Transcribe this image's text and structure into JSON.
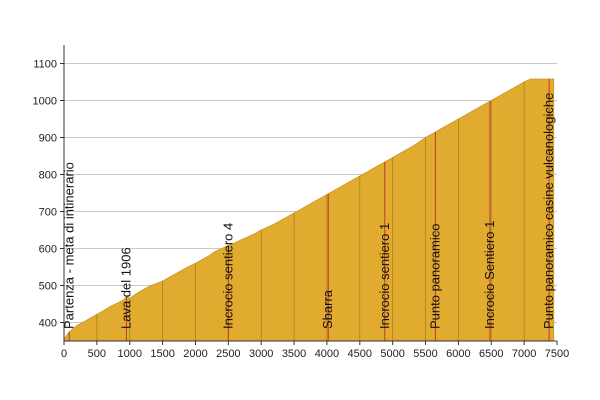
{
  "chart_data": {
    "type": "area",
    "title": "",
    "xlabel": "",
    "ylabel": "",
    "xlim": [
      0,
      7500
    ],
    "ylim": [
      350,
      1150
    ],
    "x_ticks": [
      0,
      500,
      1000,
      1500,
      2000,
      2500,
      3000,
      3500,
      4000,
      4500,
      5000,
      5500,
      6000,
      6500,
      7000,
      7500
    ],
    "x_tick_labels": [
      "0",
      "500",
      "1000",
      "1500",
      "2000",
      "2500",
      "3000",
      "3500",
      "4000",
      "4500",
      "5000",
      "5500",
      "6000",
      "6500",
      "7000",
      "7500"
    ],
    "y_ticks": [
      400,
      500,
      600,
      700,
      800,
      900,
      1000,
      1100
    ],
    "y_tick_labels": [
      "400",
      "500",
      "600",
      "700",
      "800",
      "900",
      "1000",
      "1100"
    ],
    "grid": "horizontal",
    "fill_color": "#e0ab2e",
    "marker_color": "#c0392b",
    "grid_color": "#c8c8c8",
    "series": [
      {
        "x": [
          0,
          80,
          200,
          300,
          400,
          500,
          600,
          700,
          800,
          900,
          950,
          1000,
          1100,
          1200,
          1300,
          1400,
          1500,
          1600,
          1700,
          1800,
          1900,
          2000,
          2100,
          2200,
          2300,
          2400,
          2500,
          2600,
          2700,
          2800,
          2900,
          3000,
          3100,
          3200,
          3300,
          3400,
          3500,
          3600,
          3700,
          3800,
          3900,
          4000,
          4100,
          4200,
          4300,
          4400,
          4500,
          4600,
          4700,
          4800,
          4900,
          5000,
          5100,
          5200,
          5300,
          5400,
          5500,
          5600,
          5700,
          5800,
          5900,
          6000,
          6100,
          6200,
          6300,
          6400,
          6500,
          6600,
          6700,
          6800,
          6900,
          7000,
          7100,
          7200,
          7300,
          7450
        ],
        "y": [
          355,
          375,
          392,
          402,
          412,
          422,
          432,
          443,
          452,
          460,
          470,
          465,
          478,
          488,
          498,
          505,
          512,
          522,
          532,
          542,
          552,
          560,
          570,
          580,
          592,
          600,
          608,
          615,
          624,
          632,
          640,
          650,
          658,
          666,
          676,
          686,
          696,
          706,
          716,
          726,
          736,
          746,
          756,
          766,
          776,
          786,
          796,
          806,
          816,
          826,
          836,
          846,
          856,
          866,
          876,
          888,
          900,
          910,
          920,
          930,
          940,
          950,
          960,
          970,
          980,
          990,
          1000,
          1010,
          1020,
          1030,
          1040,
          1050,
          1058,
          1058,
          1058,
          1058
        ]
      }
    ],
    "waypoints": [
      {
        "x": 80,
        "label": "Partenza - meta di intinerario"
      },
      {
        "x": 950,
        "label": "Lava del 1906"
      },
      {
        "x": 2500,
        "label": "Incrocio sentiero 4"
      },
      {
        "x": 4020,
        "label": "Sbarra"
      },
      {
        "x": 4880,
        "label": "Incrocio sentiero 1"
      },
      {
        "x": 5650,
        "label": "Punto panoramico"
      },
      {
        "x": 6480,
        "label": "Incrocio Sentiero 1"
      },
      {
        "x": 7380,
        "label": "Punto panoramico casine vulcanologiche"
      }
    ]
  }
}
